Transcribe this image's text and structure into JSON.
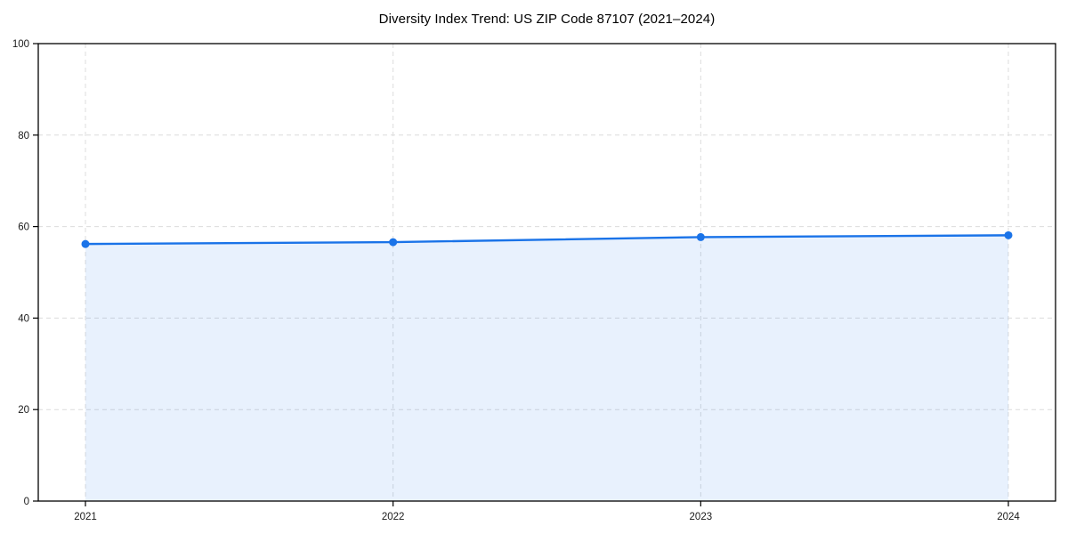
{
  "figure": {
    "title": "Diversity Index Trend: US ZIP Code 87107 (2021–2024)"
  },
  "chart_data": {
    "type": "area",
    "title": "Diversity Index Trend: US ZIP Code 87107 (2021–2024)",
    "x": [
      "2021",
      "2022",
      "2023",
      "2024"
    ],
    "series": [
      {
        "name": "Diversity Index",
        "values": [
          56.2,
          56.6,
          57.7,
          58.1
        ]
      }
    ],
    "xlabel": "",
    "ylabel": "",
    "ylim": [
      0,
      100
    ],
    "yticks": [
      0,
      20,
      40,
      60,
      80,
      100
    ],
    "grid": true,
    "grid_style": "dashed",
    "legend_position": "none",
    "colors": {
      "line": "#1a73e8",
      "marker": "#1a73e8",
      "fill": "#1a73e8",
      "fill_opacity": 0.1,
      "grid": "#dcdcdc",
      "frame": "#000000",
      "tick_text": "#1a1a1a",
      "background": "#ffffff"
    }
  }
}
